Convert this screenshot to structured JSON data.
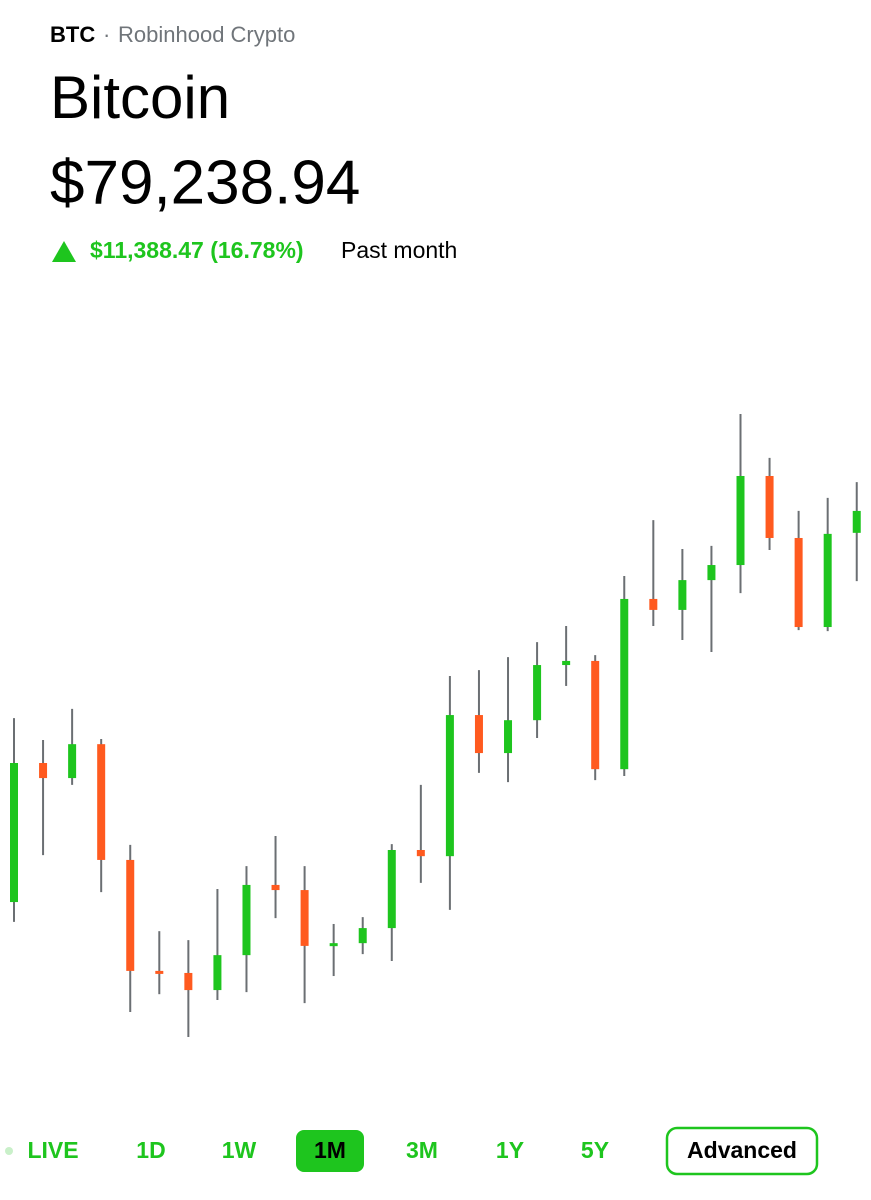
{
  "header": {
    "ticker": "BTC",
    "separator": "·",
    "source": "Robinhood Crypto",
    "name": "Bitcoin",
    "price": "$79,238.94",
    "change": "$11,388.47 (16.78%)",
    "period": "Past month"
  },
  "chart_data": {
    "type": "candlestick",
    "up_color": "#1ec51e",
    "down_color": "#ff5a1f",
    "wick_color": "#6b6f73",
    "open": [
      67850,
      71910,
      71470,
      72460,
      69080,
      65840,
      65780,
      65280,
      66300,
      68350,
      68200,
      66570,
      66650,
      67090,
      69370,
      69190,
      73310,
      72200,
      73160,
      74770,
      74890,
      71730,
      76700,
      76380,
      77250,
      77690,
      80290,
      78480,
      75880,
      78630
    ],
    "high": [
      73220,
      72580,
      73490,
      72610,
      69520,
      67000,
      66740,
      68230,
      68900,
      69780,
      68900,
      67210,
      67410,
      69540,
      71270,
      74450,
      74620,
      75000,
      75440,
      75910,
      75060,
      77370,
      79000,
      78160,
      78250,
      82100,
      80820,
      79270,
      79650,
      80110
    ],
    "low": [
      67270,
      69220,
      71270,
      68140,
      64640,
      65160,
      63910,
      64990,
      65220,
      67380,
      64900,
      65690,
      66330,
      66130,
      68410,
      67620,
      71620,
      71350,
      72640,
      74160,
      71410,
      71530,
      75910,
      75500,
      75150,
      76870,
      78130,
      75790,
      75760,
      77220
    ],
    "close": [
      71910,
      71470,
      72460,
      69080,
      65840,
      65780,
      65280,
      66300,
      68350,
      68200,
      66570,
      66650,
      67090,
      69370,
      69190,
      73310,
      72200,
      73160,
      74770,
      74890,
      71730,
      76700,
      76380,
      77250,
      77690,
      80290,
      78480,
      75880,
      78600,
      79270
    ]
  },
  "ranges": [
    "LIVE",
    "1D",
    "1W",
    "1M",
    "3M",
    "1Y",
    "5Y"
  ],
  "selected_range": "1M",
  "advanced": "Advanced"
}
